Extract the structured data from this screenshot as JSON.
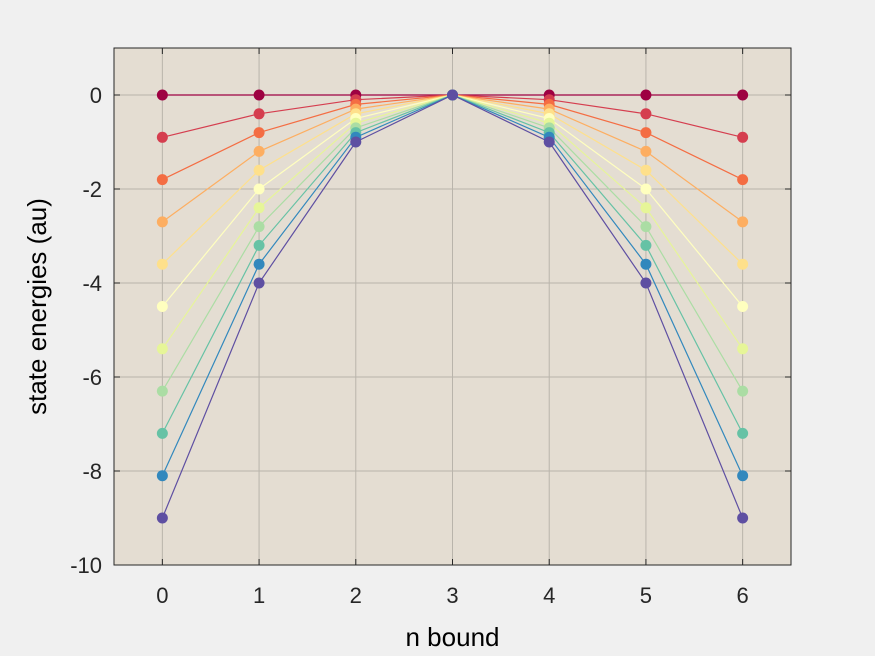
{
  "chart_data": {
    "type": "line",
    "title": "",
    "xlabel": "n bound",
    "ylabel": "state energies (au)",
    "xlim": [
      -0.5,
      6.5
    ],
    "ylim": [
      -10,
      1
    ],
    "xticks": [
      0,
      1,
      2,
      3,
      4,
      5,
      6
    ],
    "yticks": [
      -10,
      -8,
      -6,
      -4,
      -2,
      0
    ],
    "grid": true,
    "legend": "none",
    "markers": true,
    "plot_background": "#e4ddd2",
    "x": [
      0,
      1,
      2,
      3,
      4,
      5,
      6
    ],
    "series": [
      {
        "color": "#9e0142",
        "values": [
          0,
          0,
          0,
          0,
          0,
          0,
          0
        ]
      },
      {
        "color": "#d53e4f",
        "values": [
          -0.9,
          -0.4,
          -0.1,
          0,
          -0.1,
          -0.4,
          -0.9
        ]
      },
      {
        "color": "#f46d43",
        "values": [
          -1.8,
          -0.8,
          -0.2,
          0,
          -0.2,
          -0.8,
          -1.8
        ]
      },
      {
        "color": "#fdae61",
        "values": [
          -2.7,
          -1.2,
          -0.3,
          0,
          -0.3,
          -1.2,
          -2.7
        ]
      },
      {
        "color": "#fee08b",
        "values": [
          -3.6,
          -1.6,
          -0.4,
          0,
          -0.4,
          -1.6,
          -3.6
        ]
      },
      {
        "color": "#ffffbf",
        "values": [
          -4.5,
          -2.0,
          -0.5,
          0,
          -0.5,
          -2.0,
          -4.5
        ]
      },
      {
        "color": "#e6f598",
        "values": [
          -5.4,
          -2.4,
          -0.6,
          0,
          -0.6,
          -2.4,
          -5.4
        ]
      },
      {
        "color": "#abdda4",
        "values": [
          -6.3,
          -2.8,
          -0.7,
          0,
          -0.7,
          -2.8,
          -6.3
        ]
      },
      {
        "color": "#66c2a5",
        "values": [
          -7.2,
          -3.2,
          -0.8,
          0,
          -0.8,
          -3.2,
          -7.2
        ]
      },
      {
        "color": "#3288bd",
        "values": [
          -8.1,
          -3.6,
          -0.9,
          0,
          -0.9,
          -3.6,
          -8.1
        ]
      },
      {
        "color": "#5e4fa2",
        "values": [
          -9.0,
          -4.0,
          -1.0,
          0,
          -1.0,
          -4.0,
          -9.0
        ]
      }
    ]
  }
}
